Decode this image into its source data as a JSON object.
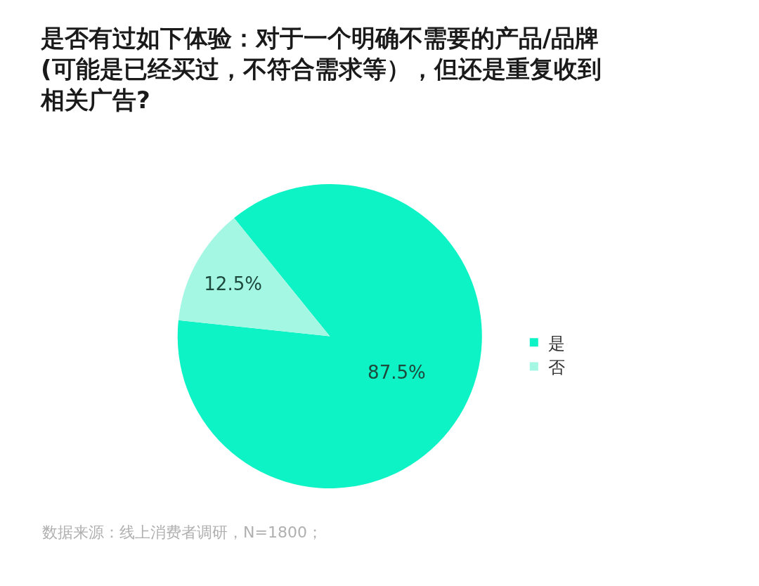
{
  "chart_data": {
    "type": "pie",
    "title": "是否有过如下体验：对于一个明确不需要的产品/品牌(可能是已经买过，不符合需求等），但还是重复收到相关广告?",
    "categories": [
      "是",
      "否"
    ],
    "values": [
      87.5,
      12.5
    ],
    "colors": [
      "#0ef3c5",
      "#a3f7e3"
    ],
    "value_labels": [
      "87.5%",
      "12.5%"
    ],
    "legend": "right",
    "annotations": [
      "数据来源：线上消费者调研，N=1800；"
    ]
  }
}
